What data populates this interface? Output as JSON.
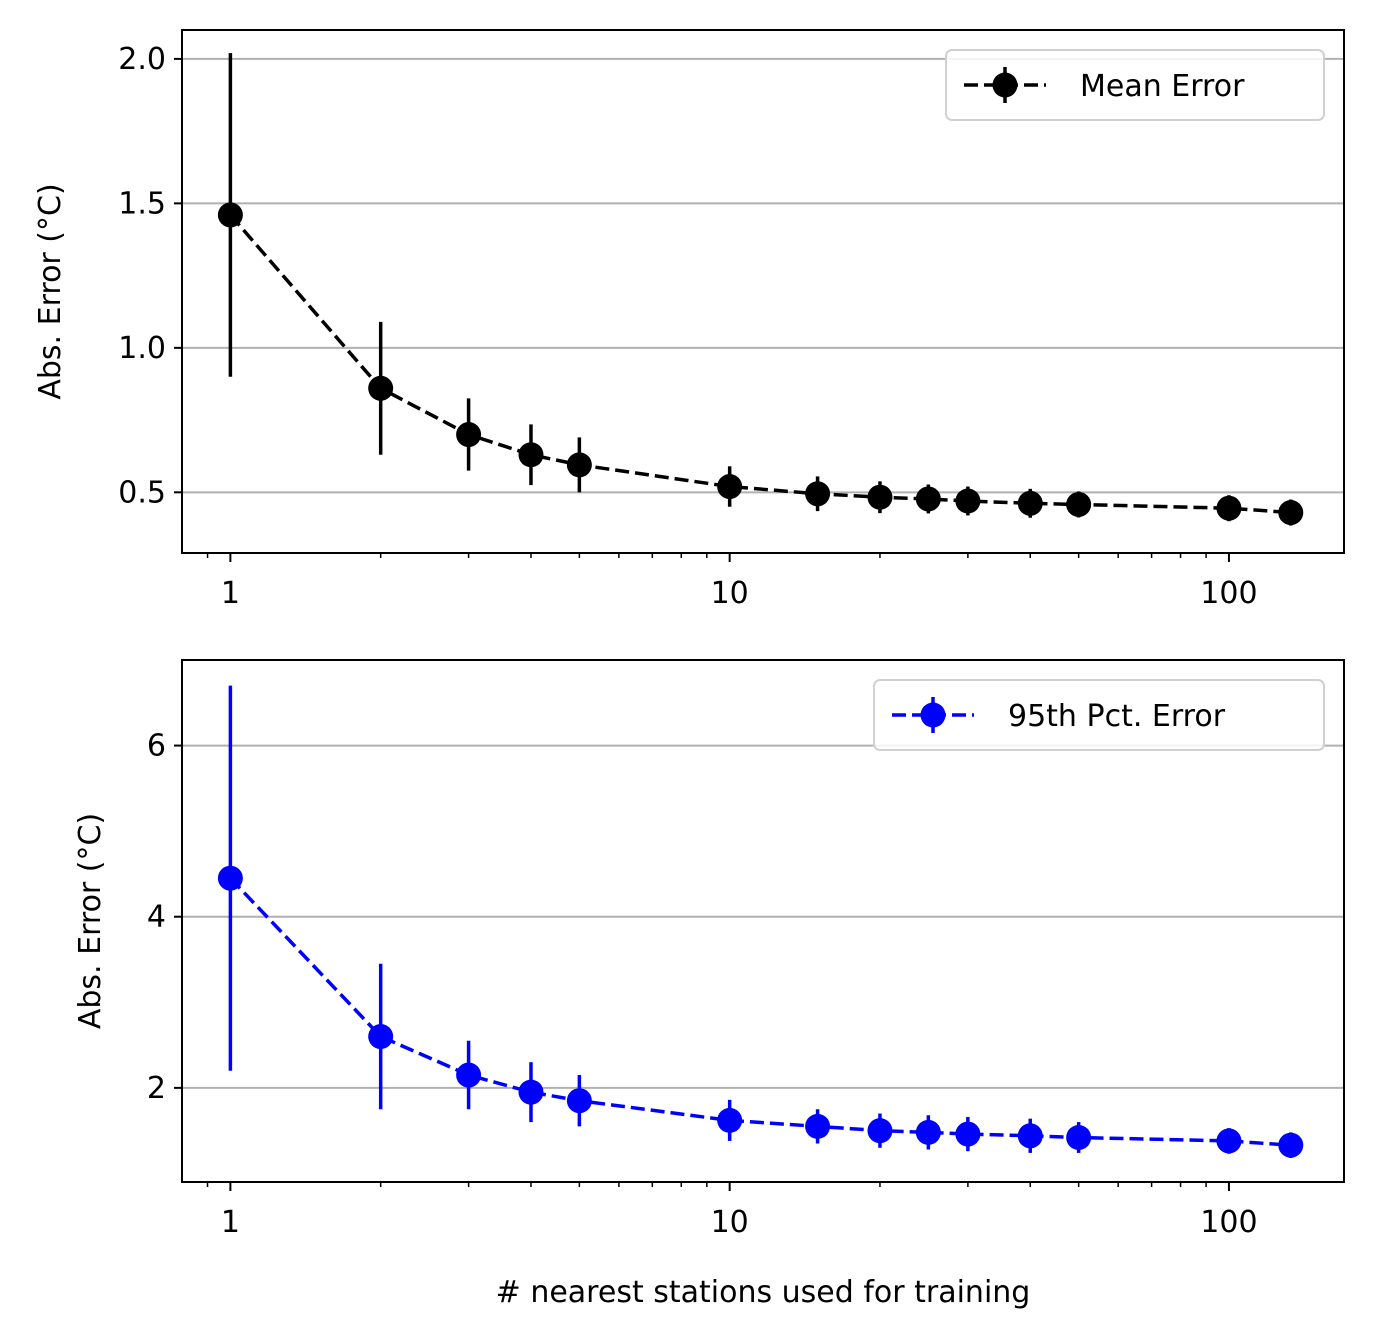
{
  "chart_data": [
    {
      "type": "line",
      "xscale": "log",
      "xlim": [
        0.8,
        170
      ],
      "ylim": [
        0.29,
        2.1
      ],
      "x_ticks": [
        1,
        10,
        100
      ],
      "x_tick_labels": [
        "1",
        "10",
        "100"
      ],
      "y_ticks": [
        0.5,
        1.0,
        1.5,
        2.0
      ],
      "y_tick_labels": [
        "0.5",
        "1.0",
        "1.5",
        "2.0"
      ],
      "ylabel": "Abs. Error (°C)",
      "xlabel": "",
      "grid": "y-major",
      "legend_position": "top-right",
      "series": [
        {
          "name": "Mean Error",
          "color": "#000000",
          "linestyle": "dashed",
          "marker": "circle",
          "x": [
            1,
            2,
            3,
            4,
            5,
            10,
            15,
            20,
            25,
            30,
            40,
            50,
            100,
            133
          ],
          "y": [
            1.46,
            0.86,
            0.7,
            0.63,
            0.595,
            0.52,
            0.495,
            0.483,
            0.477,
            0.47,
            0.462,
            0.458,
            0.445,
            0.43
          ],
          "y_err": [
            0.56,
            0.23,
            0.125,
            0.105,
            0.095,
            0.07,
            0.06,
            0.055,
            0.05,
            0.05,
            0.05,
            0.045,
            0.045,
            0.045
          ]
        }
      ]
    },
    {
      "type": "line",
      "xscale": "log",
      "xlim": [
        0.8,
        170
      ],
      "ylim": [
        0.9,
        7.0
      ],
      "x_ticks": [
        1,
        10,
        100
      ],
      "x_tick_labels": [
        "1",
        "10",
        "100"
      ],
      "y_ticks": [
        2,
        4,
        6
      ],
      "y_tick_labels": [
        "2",
        "4",
        "6"
      ],
      "ylabel": "Abs. Error (°C)",
      "xlabel": "# nearest stations used for training",
      "grid": "y-major",
      "legend_position": "top-right",
      "series": [
        {
          "name": "95th Pct. Error",
          "color": "#0000ff",
          "linestyle": "dashed",
          "marker": "circle",
          "x": [
            1,
            2,
            3,
            4,
            5,
            10,
            15,
            20,
            25,
            30,
            40,
            50,
            100,
            133
          ],
          "y": [
            4.45,
            2.6,
            2.15,
            1.95,
            1.85,
            1.62,
            1.55,
            1.5,
            1.48,
            1.46,
            1.44,
            1.42,
            1.38,
            1.33
          ],
          "y_err": [
            2.25,
            0.85,
            0.4,
            0.35,
            0.3,
            0.24,
            0.2,
            0.2,
            0.2,
            0.2,
            0.2,
            0.18,
            0.15,
            0.15
          ]
        }
      ]
    }
  ]
}
